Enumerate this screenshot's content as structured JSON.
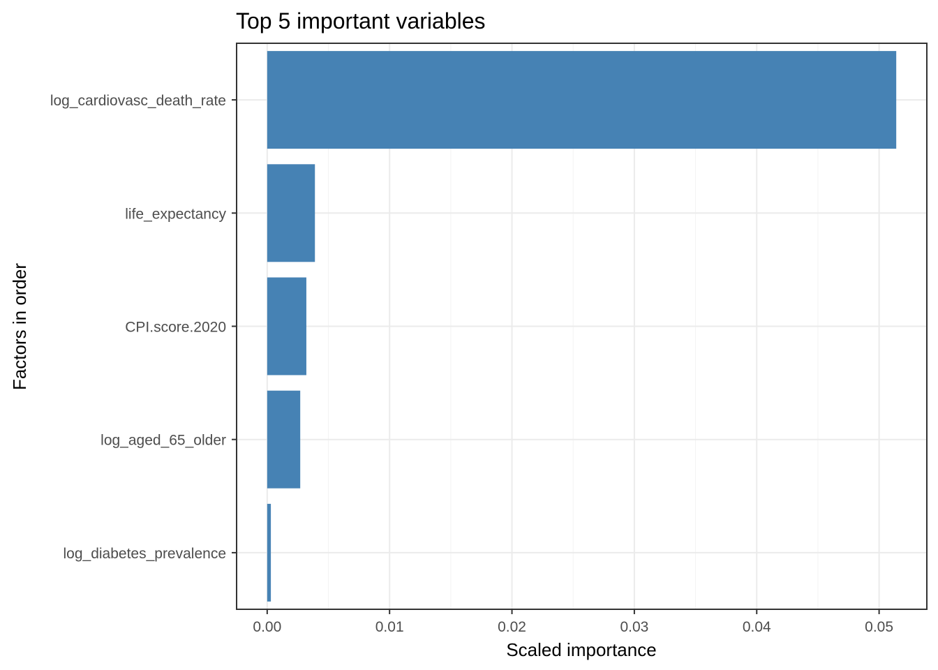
{
  "chart_data": {
    "type": "bar",
    "orientation": "horizontal",
    "title": "Top 5 important variables",
    "xlabel": "Scaled importance",
    "ylabel": "Factors in order",
    "categories": [
      "log_cardiovasc_death_rate",
      "life_expectancy",
      "CPI.score.2020",
      "log_aged_65_older",
      "log_diabetes_prevalence"
    ],
    "values": [
      0.0514,
      0.0039,
      0.0032,
      0.0027,
      0.0003
    ],
    "xlim": [
      -0.0025,
      0.0539
    ],
    "xticks": [
      0.0,
      0.01,
      0.02,
      0.03,
      0.04,
      0.05
    ],
    "xtick_labels": [
      "0.00",
      "0.01",
      "0.02",
      "0.03",
      "0.04",
      "0.05"
    ],
    "bar_color": "#4682B4",
    "grid": true,
    "theme": "bw"
  }
}
